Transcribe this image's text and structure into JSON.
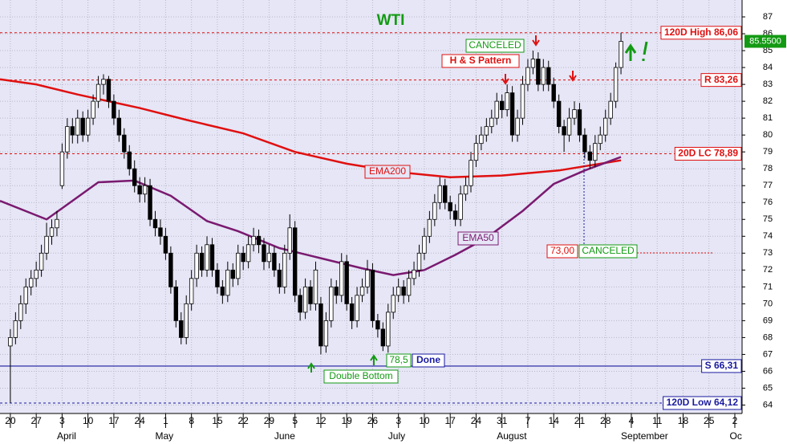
{
  "chart_data": {
    "type": "candlestick",
    "title": "WTI",
    "xlim": [
      -2,
      141.4
    ],
    "ylim": [
      63.5,
      88
    ],
    "xticks": [
      {
        "value": 0,
        "label": "20"
      },
      {
        "value": 5,
        "label": "27"
      },
      {
        "value": 10,
        "label": "3"
      },
      {
        "value": 15,
        "label": "10"
      },
      {
        "value": 20,
        "label": "17"
      },
      {
        "value": 25,
        "label": "24"
      },
      {
        "value": 30,
        "label": "1"
      },
      {
        "value": 35,
        "label": "8"
      },
      {
        "value": 40,
        "label": "15"
      },
      {
        "value": 45,
        "label": "22"
      },
      {
        "value": 50,
        "label": "29"
      },
      {
        "value": 55,
        "label": "5"
      },
      {
        "value": 60,
        "label": "12"
      },
      {
        "value": 65,
        "label": "19"
      },
      {
        "value": 70,
        "label": "26"
      },
      {
        "value": 75,
        "label": "3"
      },
      {
        "value": 80,
        "label": "10"
      },
      {
        "value": 85,
        "label": "17"
      },
      {
        "value": 90,
        "label": "24"
      },
      {
        "value": 95,
        "label": "31"
      },
      {
        "value": 100,
        "label": "7"
      },
      {
        "value": 105,
        "label": "14"
      },
      {
        "value": 110,
        "label": "21"
      },
      {
        "value": 115,
        "label": "28"
      },
      {
        "value": 120,
        "label": "4"
      },
      {
        "value": 125,
        "label": "11"
      },
      {
        "value": 130,
        "label": "18"
      },
      {
        "value": 135,
        "label": "25"
      },
      {
        "value": 140,
        "label": "2"
      }
    ],
    "month_labels": [
      {
        "value": 9,
        "label": "April"
      },
      {
        "value": 28,
        "label": "May"
      },
      {
        "value": 51,
        "label": "June"
      },
      {
        "value": 73,
        "label": "July"
      },
      {
        "value": 94,
        "label": "August"
      },
      {
        "value": 118,
        "label": "September"
      },
      {
        "value": 139,
        "label": "Oc"
      }
    ],
    "yticks": [
      64,
      65,
      66,
      67,
      68,
      69,
      70,
      71,
      72,
      73,
      74,
      75,
      76,
      77,
      78,
      79,
      80,
      81,
      82,
      83,
      84,
      85,
      86,
      87
    ],
    "grid": true,
    "series": [
      {
        "name": "WTI",
        "x": [
          0,
          1,
          2,
          3,
          4,
          5,
          6,
          7,
          8,
          9,
          10,
          11,
          12,
          13,
          14,
          15,
          16,
          17,
          18,
          19,
          20,
          21,
          22,
          23,
          24,
          25,
          26,
          27,
          28,
          29,
          30,
          31,
          32,
          33,
          34,
          35,
          36,
          37,
          38,
          39,
          40,
          41,
          42,
          43,
          44,
          45,
          46,
          47,
          48,
          49,
          50,
          51,
          52,
          53,
          54,
          55,
          56,
          57,
          58,
          59,
          60,
          61,
          62,
          63,
          64,
          65,
          66,
          67,
          68,
          69,
          70,
          71,
          72,
          73,
          74,
          75,
          76,
          77,
          78,
          79,
          80,
          81,
          82,
          83,
          84,
          85,
          86,
          87,
          88,
          89,
          90,
          91,
          92,
          93,
          94,
          95,
          96,
          97,
          98,
          99,
          100,
          101,
          102,
          103,
          104,
          105,
          106,
          107,
          108,
          109,
          110,
          111,
          112,
          113,
          114,
          115,
          116,
          117,
          118
        ],
        "open": [
          67.5,
          68,
          69,
          70,
          71,
          71.5,
          72,
          73,
          74,
          74.5,
          77,
          79,
          80.5,
          80,
          81,
          80,
          81,
          82,
          83,
          83.3,
          82,
          81,
          80,
          79,
          78,
          77,
          76.5,
          77,
          75,
          74.5,
          74,
          73,
          71,
          69,
          68,
          70,
          71.5,
          73,
          72,
          73.5,
          72,
          71,
          70.5,
          72,
          71.5,
          73,
          72.5,
          73.5,
          74,
          73.5,
          72.5,
          73,
          72,
          71,
          73,
          74.5,
          70.5,
          69.5,
          71,
          70,
          70,
          67.5,
          69,
          71,
          70.5,
          72.5,
          70,
          69,
          70.5,
          71,
          72,
          69,
          68.5,
          67.5,
          69.5,
          70.5,
          71,
          70.5,
          71.5,
          72,
          73,
          74,
          75,
          76,
          77,
          76,
          75.5,
          75,
          76.5,
          77,
          78.5,
          79.5,
          80,
          80.5,
          81,
          82,
          81.5,
          82.5,
          80,
          81,
          83,
          84,
          84.5,
          83,
          84,
          83,
          82,
          80.5,
          80,
          81,
          81.5,
          80,
          79,
          78.5,
          79.5,
          80,
          81,
          82,
          84
        ],
        "high": [
          68.5,
          69.5,
          70.5,
          71.5,
          72,
          72.5,
          73.5,
          74.8,
          75,
          75.5,
          79.5,
          81,
          81,
          81.5,
          81.4,
          81.5,
          82.4,
          83.5,
          83.6,
          83.5,
          82.4,
          81.5,
          80.4,
          79.4,
          78.5,
          77.5,
          77.5,
          77.4,
          75.5,
          75,
          74.5,
          73.4,
          71.4,
          69.5,
          70.5,
          72,
          73.5,
          73.4,
          74,
          73.9,
          72.4,
          71.4,
          72.5,
          72.4,
          73.5,
          73.4,
          74,
          74.5,
          74.4,
          73.9,
          73.5,
          73.4,
          72.4,
          73.5,
          75.3,
          74.9,
          70.9,
          71.5,
          71.4,
          72.5,
          70.4,
          69.5,
          71.5,
          71.4,
          73,
          72.9,
          70.4,
          71,
          71.5,
          72.6,
          72.4,
          69.4,
          68.9,
          70,
          71,
          71.5,
          71.4,
          72,
          72.5,
          73.5,
          74.5,
          75.5,
          76.5,
          77.5,
          77.4,
          76.4,
          75.9,
          77,
          77.5,
          79,
          80,
          80.5,
          81,
          81.5,
          82.5,
          82.4,
          83,
          82.9,
          81.5,
          83.5,
          84.5,
          85,
          84.9,
          84.5,
          84.4,
          83.4,
          82.4,
          80.9,
          81.6,
          82,
          81.9,
          80.4,
          79.4,
          80,
          80.5,
          81.5,
          82.5,
          84.3,
          86.06
        ],
        "low": [
          64.12,
          67.6,
          68.5,
          69.4,
          70.5,
          71,
          71.6,
          72.6,
          73.5,
          74,
          76.8,
          78.6,
          79.5,
          79.5,
          79.6,
          79.6,
          80.6,
          81.6,
          82.4,
          81.6,
          80.6,
          79.6,
          78.6,
          77.6,
          76.6,
          76,
          76,
          74.6,
          74,
          73.5,
          72.6,
          70.6,
          68.6,
          67.6,
          67.6,
          69.6,
          71,
          71.6,
          71.6,
          71.6,
          70.6,
          70,
          70.1,
          71,
          71.1,
          72,
          72.1,
          73.1,
          73,
          72,
          72.1,
          71.6,
          70.6,
          70.6,
          72.6,
          70.1,
          69,
          69.1,
          69.6,
          69.6,
          67,
          67.1,
          68.6,
          70,
          70.1,
          69.6,
          68.5,
          68.6,
          70.1,
          70.6,
          68.6,
          68,
          67.2,
          67.1,
          69.1,
          70.1,
          70,
          70.1,
          71.1,
          71.6,
          72.6,
          73.6,
          74.6,
          75.6,
          75.6,
          75,
          74.6,
          74.6,
          76.1,
          76.6,
          78.1,
          79.1,
          79.6,
          80.1,
          80.6,
          81,
          81.1,
          79.6,
          79.6,
          80.6,
          82.6,
          83.6,
          82.6,
          82.6,
          82.6,
          81.6,
          80.1,
          79,
          79.6,
          80.6,
          79.6,
          78.6,
          78,
          78.1,
          79.1,
          79.6,
          80.6,
          81.6,
          83.6
        ],
        "close": [
          68,
          69,
          70,
          71,
          71.5,
          72,
          73,
          74,
          74.5,
          75,
          79,
          80.5,
          80,
          81,
          80,
          81,
          82,
          83,
          83.3,
          82,
          81,
          80,
          79,
          78,
          77,
          76.5,
          77,
          75,
          74.5,
          74,
          73,
          71,
          69,
          68,
          70,
          71.5,
          73,
          72,
          73.5,
          72,
          71,
          70.5,
          72,
          71.5,
          73,
          72.5,
          73.5,
          74,
          73.5,
          72.5,
          73,
          72,
          71,
          73,
          74.5,
          70.5,
          69.5,
          71,
          70,
          72,
          67.5,
          69,
          71,
          70.5,
          72.5,
          70,
          69,
          70.5,
          71,
          72,
          69,
          68.5,
          67.5,
          69.5,
          70.5,
          71,
          70.5,
          71.5,
          72,
          73,
          74,
          75,
          76,
          77,
          76,
          75.5,
          75,
          76.5,
          77,
          78.5,
          79.5,
          80,
          80.5,
          81,
          82,
          81.5,
          82.5,
          80,
          81,
          83,
          84,
          84.5,
          83,
          84,
          83,
          82,
          80.5,
          80,
          81,
          81.5,
          80,
          79,
          78.5,
          79.5,
          80,
          81,
          82,
          84,
          85.55
        ]
      },
      {
        "name": "EMA200",
        "color": "#e01010",
        "x": [
          -2,
          5,
          13,
          25,
          34,
          45,
          55,
          65,
          75,
          85,
          95,
          106,
          118
        ],
        "values": [
          83.3,
          83.0,
          82.4,
          81.6,
          80.9,
          80.1,
          79.0,
          78.3,
          77.8,
          77.5,
          77.6,
          77.9,
          78.5
        ]
      },
      {
        "name": "EMA50",
        "color": "#7a1a70",
        "x": [
          -2,
          7,
          17,
          24,
          31,
          38,
          44,
          52,
          60,
          68,
          74,
          80,
          86,
          92,
          99,
          105,
          111,
          118
        ],
        "values": [
          76.1,
          75.0,
          77.2,
          77.3,
          76.4,
          74.9,
          74.3,
          73.3,
          72.7,
          72.1,
          71.7,
          72.0,
          72.9,
          73.9,
          75.5,
          77.1,
          77.9,
          78.7
        ]
      }
    ],
    "levels": [
      {
        "value": 86.06,
        "label": "120D High 86,06",
        "color": "#e01010",
        "style": "dashed"
      },
      {
        "value": 83.26,
        "label": "R 83,26",
        "color": "#e01010",
        "style": "dashed"
      },
      {
        "value": 78.89,
        "label": "20D LC 78,89",
        "color": "#e01010",
        "style": "dashed"
      },
      {
        "value": 66.31,
        "label": "S 66,31",
        "color": "#1a1aa0",
        "style": "solid"
      },
      {
        "value": 64.12,
        "label": "120D Low 64,12",
        "color": "#1a1aa0",
        "style": "dashed"
      }
    ],
    "last_price": {
      "value": 85.55,
      "label": "85.5500"
    },
    "annotations": {
      "canceled_top": "CANCELED",
      "hs_pattern": "H & S Pattern",
      "ema200": "EMA200",
      "ema50": "EMA50",
      "level_73": "73,00",
      "canceled_bottom": "CANCELED",
      "target": "78,5",
      "done": "Done",
      "double_bottom": "Double Bottom"
    }
  }
}
